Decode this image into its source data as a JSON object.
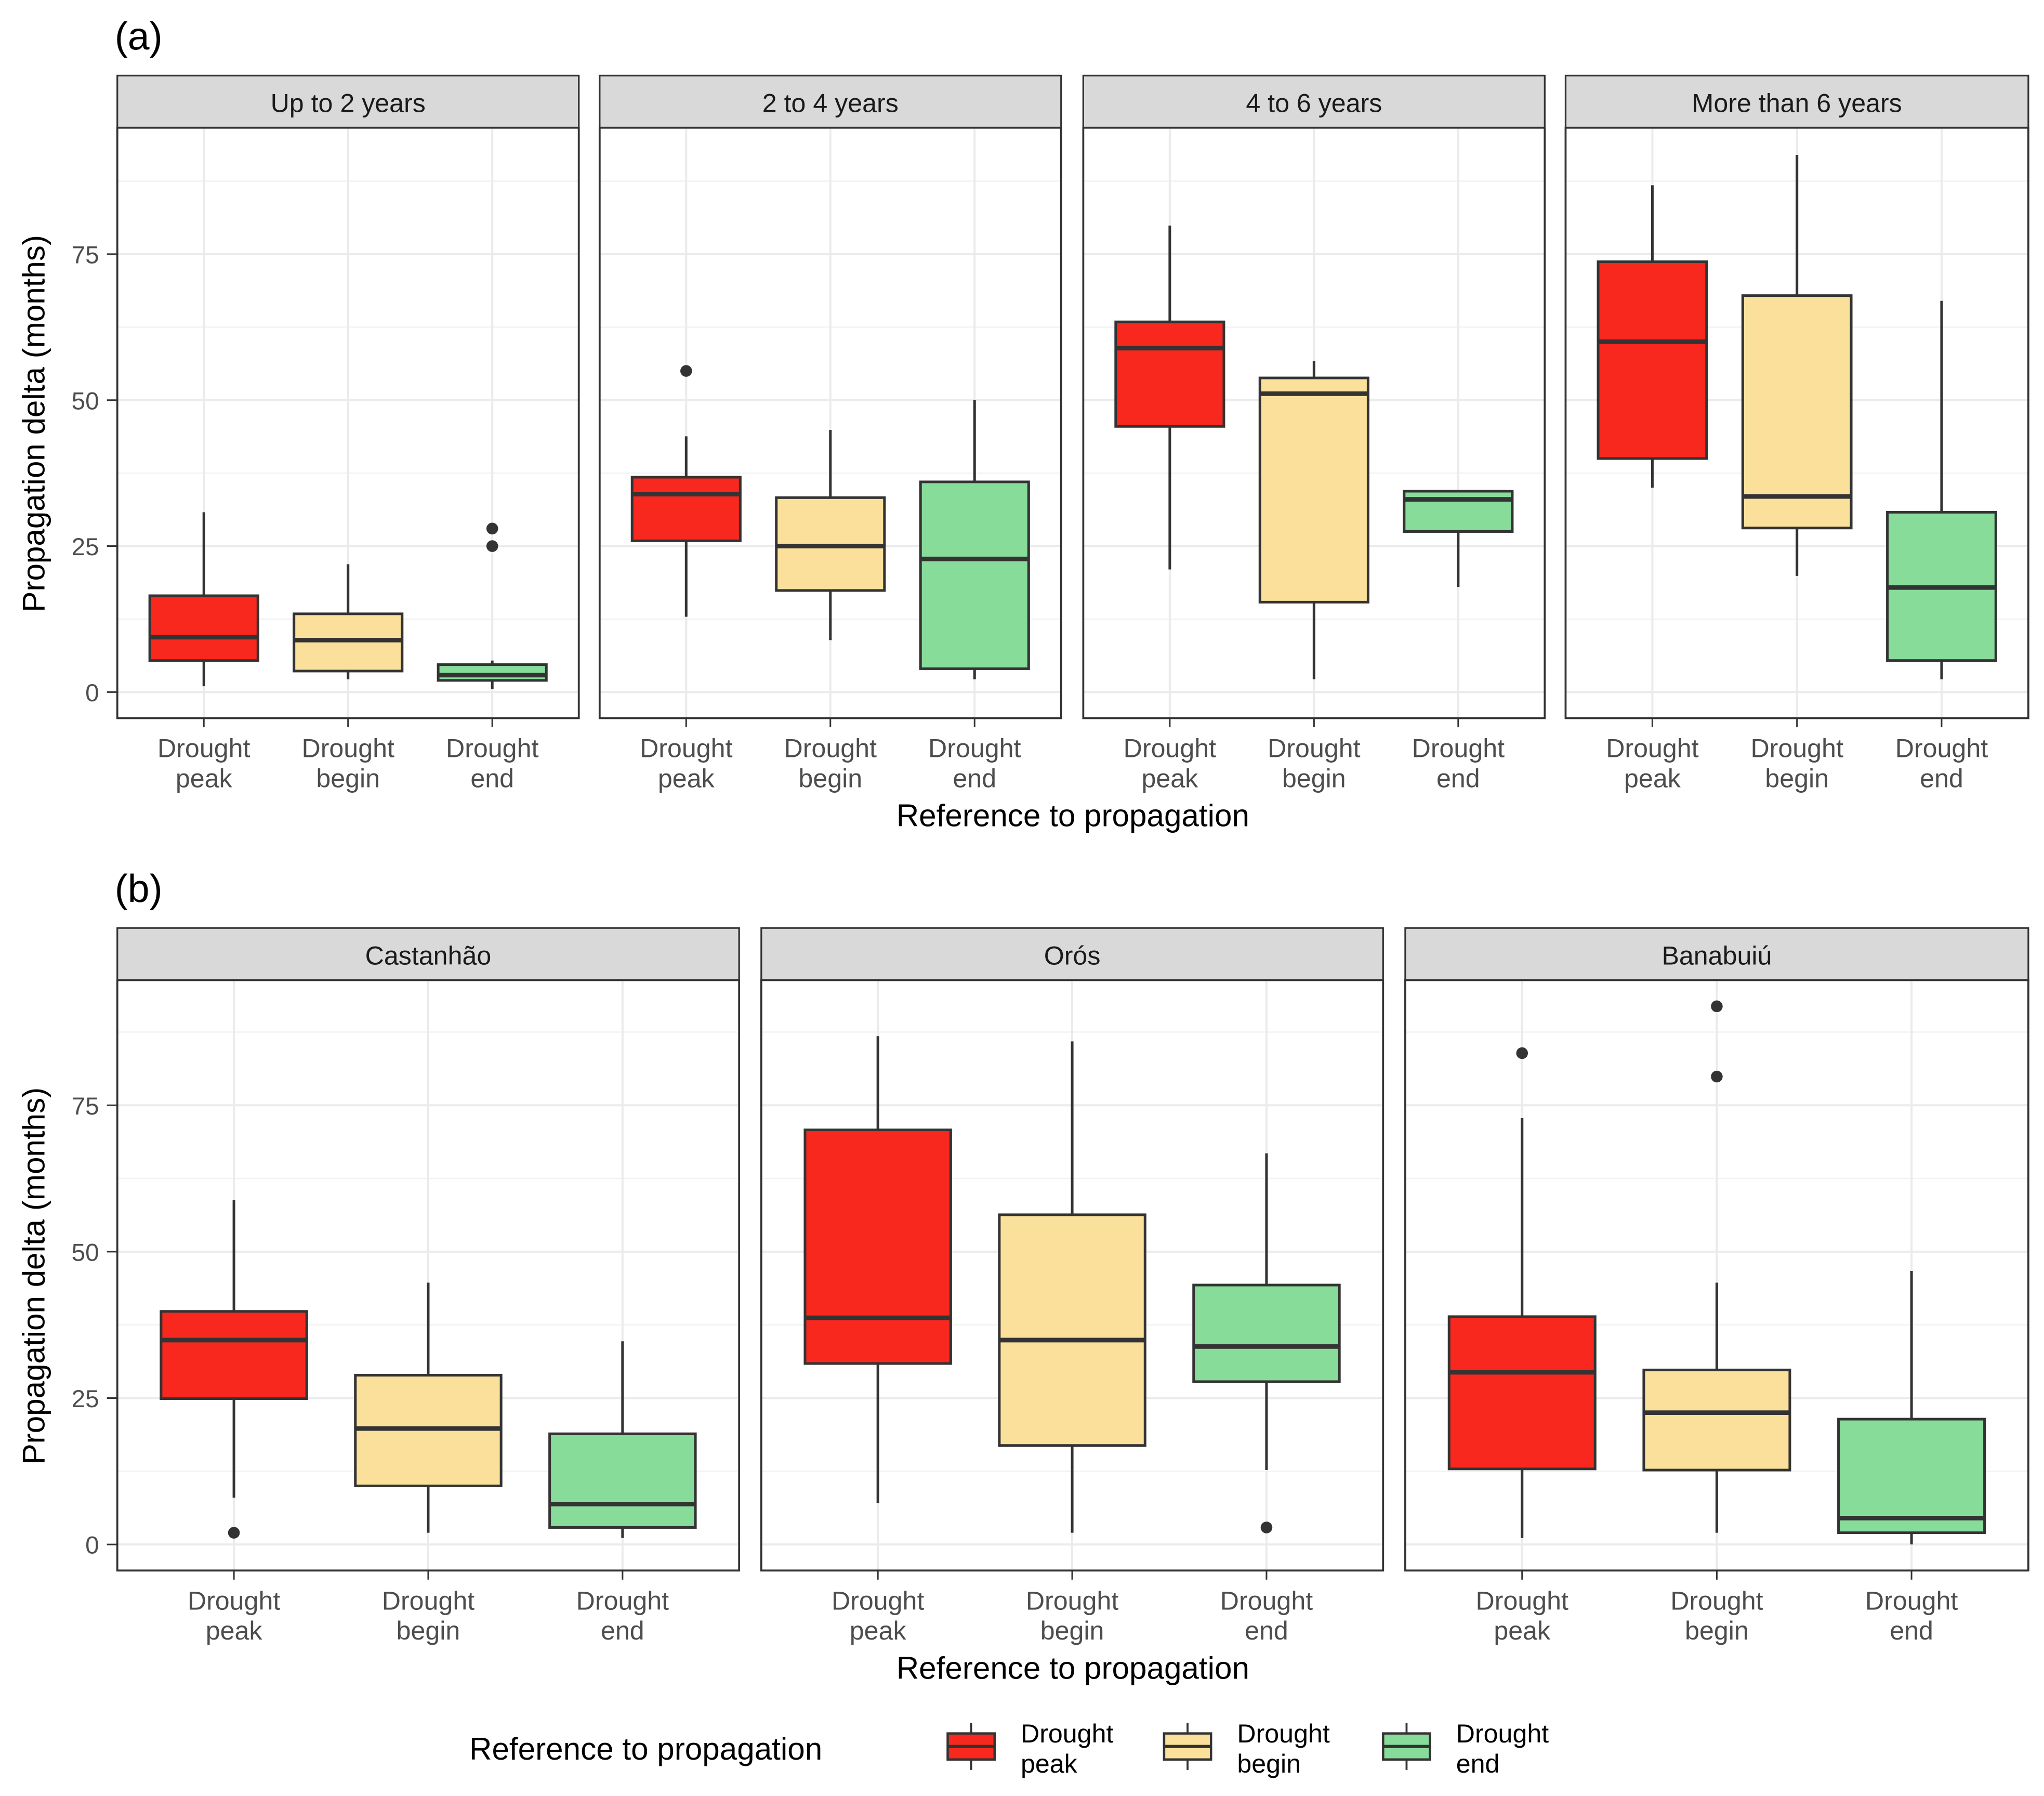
{
  "chart_data": [
    {
      "type": "box",
      "tag": "(a)",
      "ylabel": "Propagation delta (months)",
      "xlabel": "Reference to propagation",
      "ylim": [
        -4.5,
        96.6
      ],
      "yticks": [
        0,
        25,
        50,
        75
      ],
      "categories": [
        [
          "Drought",
          "peak"
        ],
        [
          "Drought",
          "begin"
        ],
        [
          "Drought",
          "end"
        ]
      ],
      "panels": [
        {
          "title": "Up to 2 years",
          "boxes": [
            {
              "min": 1,
              "q1": 5.4,
              "median": 9.4,
              "q3": 16.5,
              "max": 30.8,
              "outliers": []
            },
            {
              "min": 2.2,
              "q1": 3.6,
              "median": 8.9,
              "q3": 13.4,
              "max": 21.9,
              "outliers": []
            },
            {
              "min": 0.5,
              "q1": 2,
              "median": 2.9,
              "q3": 4.7,
              "max": 5.4,
              "outliers": [
                25,
                28
              ]
            }
          ]
        },
        {
          "title": "2 to 4 years",
          "boxes": [
            {
              "min": 12.9,
              "q1": 25.9,
              "median": 33.9,
              "q3": 36.8,
              "max": 43.8,
              "outliers": [
                55
              ]
            },
            {
              "min": 8.9,
              "q1": 17.4,
              "median": 25,
              "q3": 33.3,
              "max": 44.9,
              "outliers": []
            },
            {
              "min": 2.2,
              "q1": 4,
              "median": 22.8,
              "q3": 36,
              "max": 50,
              "outliers": []
            }
          ]
        },
        {
          "title": "4 to 6 years",
          "boxes": [
            {
              "min": 21,
              "q1": 45.5,
              "median": 58.9,
              "q3": 63.4,
              "max": 79.9,
              "outliers": []
            },
            {
              "min": 2.2,
              "q1": 15.4,
              "median": 51.1,
              "q3": 53.8,
              "max": 56.7,
              "outliers": []
            },
            {
              "min": 18,
              "q1": 27.5,
              "median": 33,
              "q3": 34.4,
              "max": 34.6,
              "outliers": []
            }
          ]
        },
        {
          "title": "More than 6 years",
          "boxes": [
            {
              "min": 35,
              "q1": 40,
              "median": 60,
              "q3": 73.7,
              "max": 86.8,
              "outliers": []
            },
            {
              "min": 19.9,
              "q1": 28.1,
              "median": 33.5,
              "q3": 67.9,
              "max": 92,
              "outliers": []
            },
            {
              "min": 2.2,
              "q1": 5.4,
              "median": 17.9,
              "q3": 30.8,
              "max": 67,
              "outliers": []
            }
          ]
        }
      ]
    },
    {
      "type": "box",
      "tag": "(b)",
      "ylabel": "Propagation delta (months)",
      "xlabel": "Reference to propagation",
      "ylim": [
        -4.5,
        96.6
      ],
      "yticks": [
        0,
        25,
        50,
        75
      ],
      "categories": [
        [
          "Drought",
          "peak"
        ],
        [
          "Drought",
          "begin"
        ],
        [
          "Drought",
          "end"
        ]
      ],
      "panels": [
        {
          "title": "Castanhão",
          "boxes": [
            {
              "min": 8,
              "q1": 24.9,
              "median": 34.9,
              "q3": 39.8,
              "max": 58.8,
              "outliers": [
                2
              ]
            },
            {
              "min": 2,
              "q1": 10,
              "median": 19.8,
              "q3": 28.9,
              "max": 44.7,
              "outliers": []
            },
            {
              "min": 1.1,
              "q1": 2.9,
              "median": 6.9,
              "q3": 18.9,
              "max": 34.7,
              "outliers": []
            }
          ]
        },
        {
          "title": "Orós",
          "boxes": [
            {
              "min": 7.1,
              "q1": 30.9,
              "median": 38.7,
              "q3": 70.8,
              "max": 86.8,
              "outliers": []
            },
            {
              "min": 2,
              "q1": 16.9,
              "median": 34.9,
              "q3": 56.3,
              "max": 85.9,
              "outliers": []
            },
            {
              "min": 12.7,
              "q1": 27.8,
              "median": 33.8,
              "q3": 44.3,
              "max": 66.8,
              "outliers": [
                2.9
              ]
            }
          ]
        },
        {
          "title": "Banabuiú",
          "boxes": [
            {
              "min": 1.1,
              "q1": 12.9,
              "median": 29.4,
              "q3": 38.9,
              "max": 72.8,
              "outliers": [
                83.9
              ]
            },
            {
              "min": 2,
              "q1": 12.7,
              "median": 22.5,
              "q3": 29.8,
              "max": 44.7,
              "outliers": [
                79.9,
                91.9
              ]
            },
            {
              "min": 0,
              "q1": 2,
              "median": 4.5,
              "q3": 21.4,
              "max": 46.7,
              "outliers": []
            }
          ]
        }
      ]
    }
  ],
  "legend": {
    "title": "Reference to propagation",
    "placement": "bottom",
    "items": [
      {
        "line1": "Drought",
        "line2": "peak",
        "color": "#F8281E"
      },
      {
        "line1": "Drought",
        "line2": "begin",
        "color": "#FBE09B"
      },
      {
        "line1": "Drought",
        "line2": "end",
        "color": "#88DC9A"
      }
    ]
  }
}
